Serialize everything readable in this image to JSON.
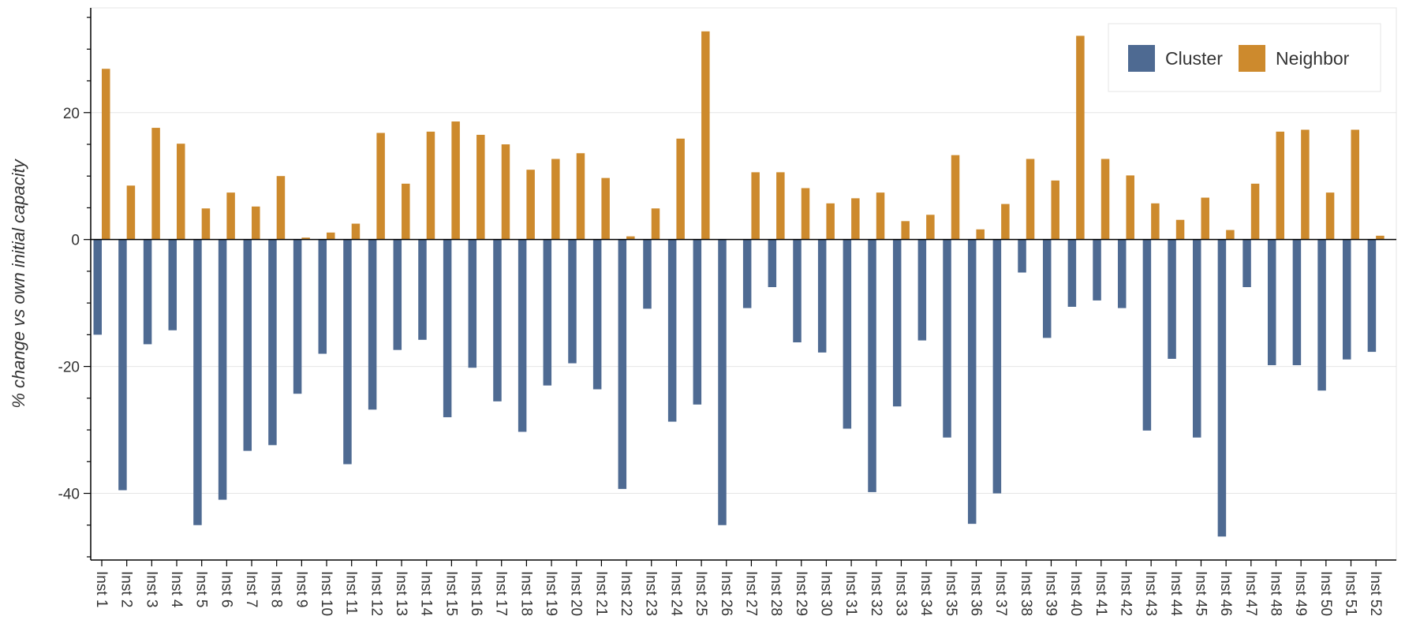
{
  "chart_data": {
    "type": "bar",
    "title": "",
    "xlabel": "",
    "ylabel": "% change vs own initial capacity",
    "ylim": [
      -50.5,
      36.5
    ],
    "yticks": [
      -40,
      -20,
      0,
      20
    ],
    "grid": true,
    "legend_position": "top-right",
    "categories": [
      "Inst 1",
      "Inst 2",
      "Inst 3",
      "Inst 4",
      "Inst 5",
      "Inst 6",
      "Inst 7",
      "Inst 8",
      "Inst 9",
      "Inst 10",
      "Inst 11",
      "Inst 12",
      "Inst 13",
      "Inst 14",
      "Inst 15",
      "Inst 16",
      "Inst 17",
      "Inst 18",
      "Inst 19",
      "Inst 20",
      "Inst 21",
      "Inst 22",
      "Inst 23",
      "Inst 24",
      "Inst 25",
      "Inst 26",
      "Inst 27",
      "Inst 28",
      "Inst 29",
      "Inst 30",
      "Inst 31",
      "Inst 32",
      "Inst 33",
      "Inst 34",
      "Inst 35",
      "Inst 36",
      "Inst 37",
      "Inst 38",
      "Inst 39",
      "Inst 40",
      "Inst 41",
      "Inst 42",
      "Inst 43",
      "Inst 44",
      "Inst 45",
      "Inst 46",
      "Inst 47",
      "Inst 48",
      "Inst 49",
      "Inst 50",
      "Inst 51",
      "Inst 52"
    ],
    "series": [
      {
        "name": "Cluster",
        "color": "#4e6a92",
        "values": [
          -15.0,
          -39.5,
          -16.5,
          -14.3,
          -45.0,
          -41.0,
          -33.3,
          -32.4,
          -24.3,
          -18.0,
          -35.4,
          -26.8,
          -17.4,
          -15.8,
          -28.0,
          -20.2,
          -25.5,
          -30.3,
          -23.0,
          -19.5,
          -23.6,
          -39.3,
          -10.9,
          -28.7,
          -26.0,
          -45.0,
          -10.8,
          -7.5,
          -16.2,
          -17.8,
          -29.8,
          -39.8,
          -26.3,
          -15.9,
          -31.2,
          -44.8,
          -40.0,
          -5.2,
          -15.5,
          -10.6,
          -9.6,
          -10.8,
          -30.1,
          -18.8,
          -31.2,
          -46.8,
          -7.5,
          -19.8,
          -19.8,
          -23.8,
          -18.9,
          -17.7
        ]
      },
      {
        "name": "Neighbor",
        "color": "#cd8a2d",
        "values": [
          26.9,
          8.5,
          17.6,
          15.1,
          4.9,
          7.4,
          5.2,
          10.0,
          0.3,
          1.1,
          2.5,
          16.8,
          8.8,
          17.0,
          18.6,
          16.5,
          15.0,
          11.0,
          12.7,
          13.6,
          9.7,
          0.5,
          4.9,
          15.9,
          32.8,
          0.0,
          10.6,
          10.6,
          8.1,
          5.7,
          6.5,
          7.4,
          2.9,
          3.9,
          13.3,
          1.6,
          5.6,
          12.7,
          9.3,
          32.1,
          12.7,
          10.1,
          5.7,
          3.1,
          6.6,
          1.5,
          8.8,
          17.0,
          17.3,
          7.4,
          17.3,
          0.6
        ]
      }
    ]
  }
}
